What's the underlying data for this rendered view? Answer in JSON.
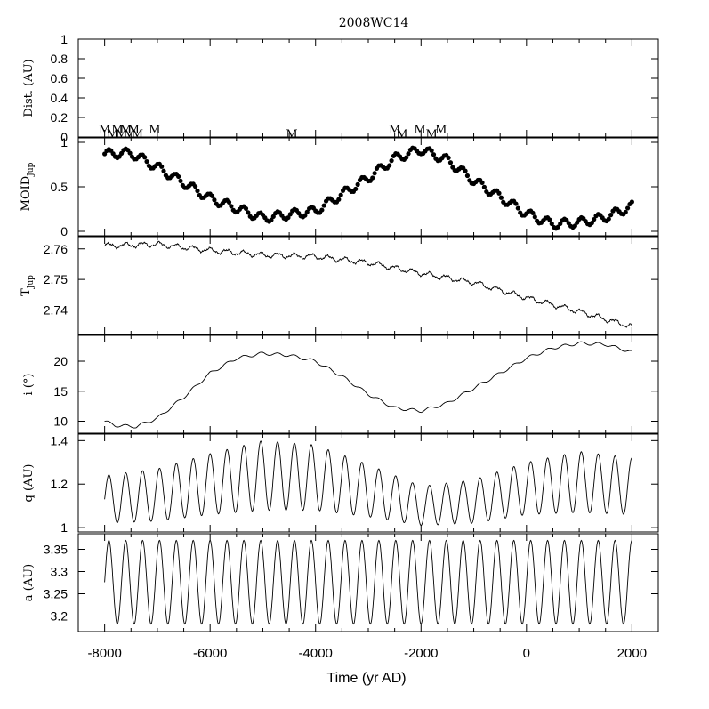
{
  "title": "2008WC14",
  "xlabel": "Time (yr AD)",
  "x_ticks": [
    -8000,
    -6000,
    -4000,
    -2000,
    0,
    2000
  ],
  "x_range": [
    -8500,
    2500
  ],
  "chart_data": [
    {
      "type": "scatter",
      "panel": "distance",
      "ylabel": "Dist. (AU)",
      "ylim": [
        0,
        1
      ],
      "y_ticks": [
        0,
        0.2,
        0.4,
        0.6,
        0.8,
        1
      ],
      "y_tick_labels": [
        "0",
        "0.2",
        "0.4",
        "0.6",
        "0.8",
        "1"
      ],
      "annotations": [
        {
          "text": "M",
          "x": -8000
        },
        {
          "text": "M",
          "x": -7850
        },
        {
          "text": "M",
          "x": -7760
        },
        {
          "text": "M",
          "x": -7680
        },
        {
          "text": "M",
          "x": -7600
        },
        {
          "text": "M",
          "x": -7530
        },
        {
          "text": "M",
          "x": -7450
        },
        {
          "text": "M",
          "x": -7380
        },
        {
          "text": "M",
          "x": -7050
        },
        {
          "text": "M",
          "x": -4450
        },
        {
          "text": "M",
          "x": -2500
        },
        {
          "text": "M",
          "x": -2360
        },
        {
          "text": "M",
          "x": -2020
        },
        {
          "text": "M",
          "x": -1800
        },
        {
          "text": "M",
          "x": -1620
        }
      ]
    },
    {
      "type": "scatter",
      "panel": "moid",
      "ylabel": "MOIDJup",
      "ylim": [
        -0.05,
        1.05
      ],
      "y_ticks": [
        0,
        0.5,
        1
      ],
      "y_tick_labels": [
        "0",
        "0.5",
        "1"
      ],
      "trend": [
        [
          -8000,
          0.87
        ],
        [
          -7500,
          0.88
        ],
        [
          -7000,
          0.72
        ],
        [
          -6000,
          0.37
        ],
        [
          -5000,
          0.15
        ],
        [
          -4000,
          0.23
        ],
        [
          -3000,
          0.6
        ],
        [
          -2500,
          0.82
        ],
        [
          -2000,
          0.92
        ],
        [
          -1500,
          0.8
        ],
        [
          -1000,
          0.57
        ],
        [
          0,
          0.2
        ],
        [
          500,
          0.08
        ],
        [
          1000,
          0.1
        ],
        [
          1500,
          0.16
        ],
        [
          2000,
          0.28
        ]
      ],
      "oscillation": {
        "period_years": 320,
        "amplitude": 0.05
      }
    },
    {
      "type": "line",
      "panel": "tisserand",
      "ylabel": "TJup",
      "ylim": [
        2.732,
        2.764
      ],
      "y_ticks": [
        2.74,
        2.75,
        2.76
      ],
      "y_tick_labels": [
        "2.74",
        "2.75",
        "2.76"
      ],
      "trend": [
        [
          -8000,
          2.761
        ],
        [
          -7000,
          2.7615
        ],
        [
          -6000,
          2.7595
        ],
        [
          -5000,
          2.758
        ],
        [
          -4000,
          2.7575
        ],
        [
          -3000,
          2.7555
        ],
        [
          -2000,
          2.752
        ],
        [
          -1000,
          2.749
        ],
        [
          0,
          2.744
        ],
        [
          1000,
          2.7395
        ],
        [
          2000,
          2.7345
        ]
      ],
      "oscillation": {
        "period_years": 320,
        "amplitude": 0.0012
      }
    },
    {
      "type": "line",
      "panel": "inclination",
      "ylabel": "i (°)",
      "ylim": [
        8,
        24.3
      ],
      "y_ticks": [
        10,
        15,
        20
      ],
      "y_tick_labels": [
        "10",
        "15",
        "20"
      ],
      "trend": [
        [
          -8000,
          10.0
        ],
        [
          -7800,
          9.3
        ],
        [
          -7400,
          9.1
        ],
        [
          -7000,
          10.5
        ],
        [
          -6500,
          14.0
        ],
        [
          -6000,
          18.0
        ],
        [
          -5500,
          20.5
        ],
        [
          -5000,
          21.3
        ],
        [
          -4500,
          21.0
        ],
        [
          -4000,
          20.0
        ],
        [
          -3500,
          17.5
        ],
        [
          -3000,
          14.5
        ],
        [
          -2500,
          12.2
        ],
        [
          -2000,
          11.7
        ],
        [
          -1500,
          13.0
        ],
        [
          -1000,
          15.5
        ],
        [
          -500,
          18.0
        ],
        [
          0,
          20.5
        ],
        [
          500,
          22.2
        ],
        [
          1000,
          23.0
        ],
        [
          1500,
          22.8
        ],
        [
          2000,
          21.5
        ]
      ],
      "oscillation": {
        "period_years": 320,
        "amplitude": 0.25
      }
    },
    {
      "type": "line",
      "panel": "perihelion",
      "ylabel": "q (AU)",
      "ylim": [
        0.98,
        1.43
      ],
      "y_ticks": [
        1,
        1.2,
        1.4
      ],
      "y_tick_labels": [
        "1",
        "1.2",
        "1.4"
      ],
      "center_trend": [
        [
          -8000,
          1.13
        ],
        [
          -7000,
          1.15
        ],
        [
          -6000,
          1.2
        ],
        [
          -5000,
          1.24
        ],
        [
          -4000,
          1.23
        ],
        [
          -3000,
          1.17
        ],
        [
          -2000,
          1.1
        ],
        [
          -1000,
          1.12
        ],
        [
          0,
          1.18
        ],
        [
          1000,
          1.21
        ],
        [
          2000,
          1.19
        ]
      ],
      "amplitude_trend": [
        [
          -8000,
          0.11
        ],
        [
          -7000,
          0.12
        ],
        [
          -6000,
          0.14
        ],
        [
          -5000,
          0.16
        ],
        [
          -4000,
          0.15
        ],
        [
          -3000,
          0.12
        ],
        [
          -2000,
          0.09
        ],
        [
          -1000,
          0.1
        ],
        [
          0,
          0.12
        ],
        [
          1000,
          0.14
        ],
        [
          2000,
          0.13
        ]
      ],
      "oscillation": {
        "period_years": 320
      }
    },
    {
      "type": "line",
      "panel": "semimajor",
      "ylabel": "a (AU)",
      "ylim": [
        3.165,
        3.385
      ],
      "y_ticks": [
        3.2,
        3.25,
        3.3,
        3.35
      ],
      "y_tick_labels": [
        "3.2",
        "3.25",
        "3.3",
        "3.35"
      ],
      "center": 3.276,
      "amplitude": 0.094,
      "oscillation": {
        "period_years": 320
      }
    }
  ]
}
